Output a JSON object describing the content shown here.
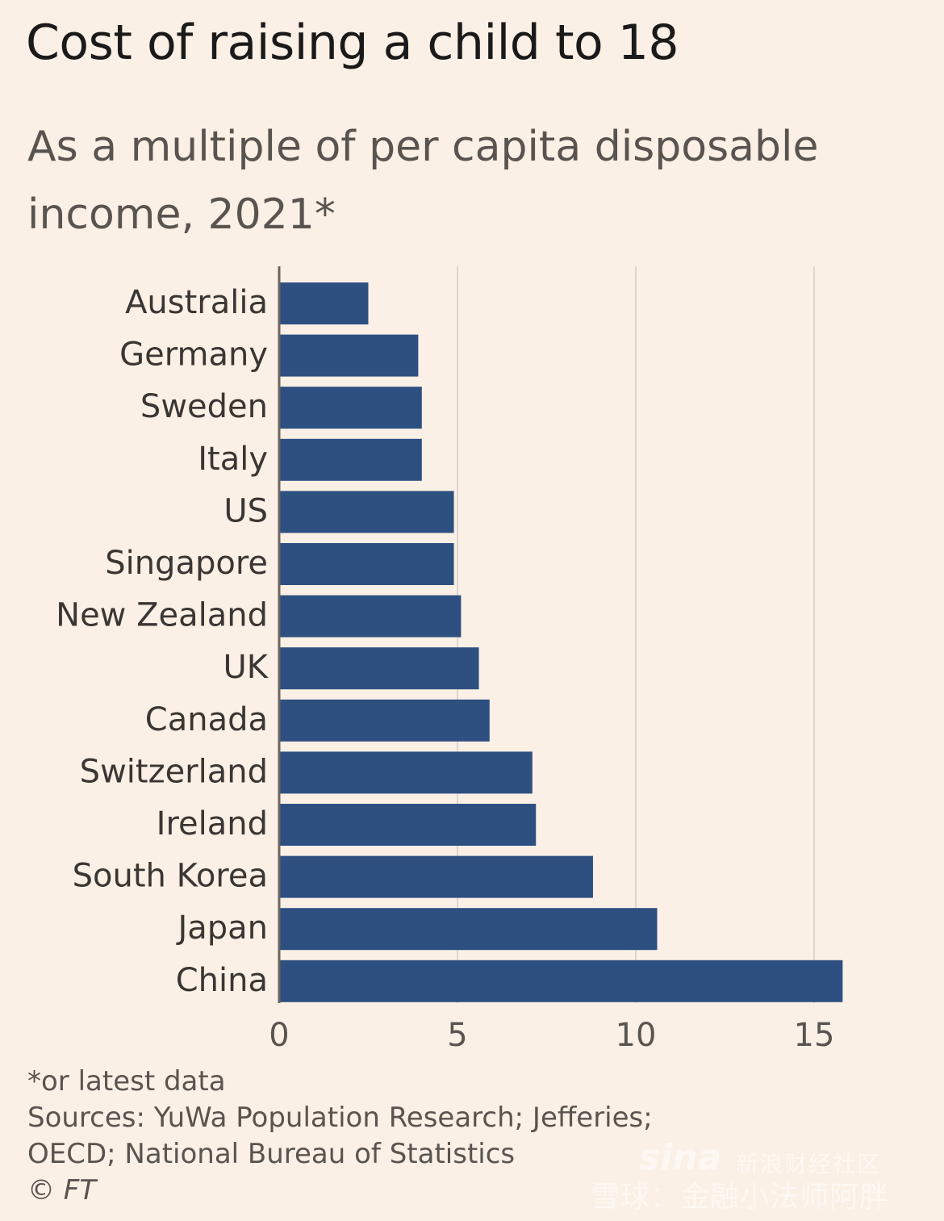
{
  "chart_data": {
    "type": "bar",
    "orientation": "horizontal",
    "title": "Cost of raising a child to 18",
    "subtitle": "As a multiple of per capita disposable income, 2021*",
    "categories": [
      "Australia",
      "Germany",
      "Sweden",
      "Italy",
      "US",
      "Singapore",
      "New Zealand",
      "UK",
      "Canada",
      "Switzerland",
      "Ireland",
      "South Korea",
      "Japan",
      "China"
    ],
    "values": [
      2.5,
      3.9,
      4.0,
      4.0,
      4.9,
      4.9,
      5.1,
      5.6,
      5.9,
      7.1,
      7.2,
      8.8,
      10.6,
      15.8
    ],
    "xlim": [
      0,
      16
    ],
    "xticks": [
      0,
      5,
      10,
      15
    ],
    "xlabel": "",
    "ylabel": "",
    "grid": true,
    "bar_color": "#2E5081",
    "grid_color": "#DED6CE"
  },
  "notes": {
    "footnote": "*or latest data",
    "sources_line1": "Sources: YuWa Population Research; Jefferies;",
    "sources_line2": "OECD; National Bureau of Statistics",
    "credit": "© FT"
  },
  "watermark": {
    "logo": "sina",
    "tag": "新浪财经社区",
    "text": "雪球：金融小法师阿胖"
  }
}
